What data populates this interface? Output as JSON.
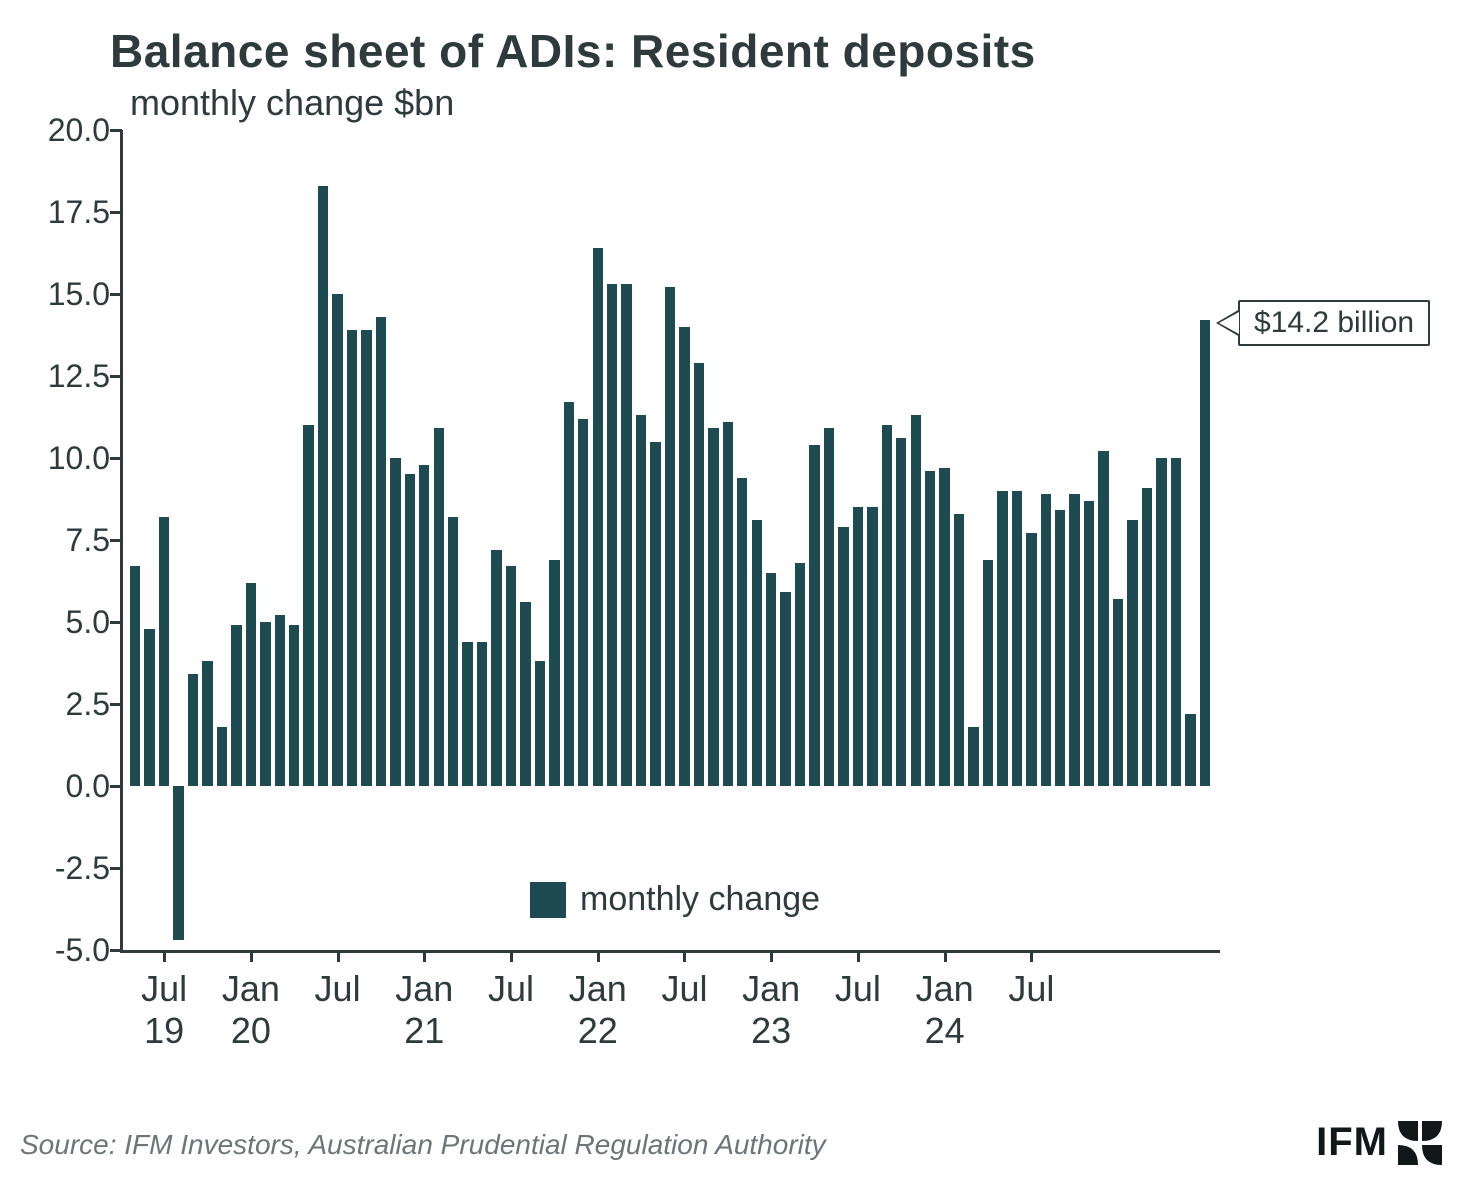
{
  "chart": {
    "type": "bar",
    "title": "Balance sheet of ADIs: Resident deposits",
    "subtitle": "monthly change $bn",
    "title_color": "#2f3a3c",
    "title_fontsize": 46,
    "subtitle_fontsize": 36,
    "background_color": "#ffffff",
    "axis_color": "#2f3a3c",
    "axis_linewidth": 3,
    "bar_color": "#1e4a52",
    "bar_gap_ratio": 0.28,
    "ylim": [
      -5.0,
      20.0
    ],
    "ytick_step": 2.5,
    "yticks": [
      -5.0,
      -2.5,
      0.0,
      2.5,
      5.0,
      7.5,
      10.0,
      12.5,
      15.0,
      17.5,
      20.0
    ],
    "ytick_labels": [
      "-5.0",
      "-2.5",
      "0.0",
      "2.5",
      "5.0",
      "7.5",
      "10.0",
      "12.5",
      "15.0",
      "17.5",
      "20.0"
    ],
    "ytick_fontsize": 32,
    "xtick_fontsize": 36,
    "xticks": [
      {
        "index": 2,
        "line1": "Jul",
        "line2": "19"
      },
      {
        "index": 8,
        "line1": "Jan",
        "line2": "20"
      },
      {
        "index": 14,
        "line1": "Jul",
        "line2": ""
      },
      {
        "index": 20,
        "line1": "Jan",
        "line2": "21"
      },
      {
        "index": 26,
        "line1": "Jul",
        "line2": ""
      },
      {
        "index": 32,
        "line1": "Jan",
        "line2": "22"
      },
      {
        "index": 38,
        "line1": "Jul",
        "line2": ""
      },
      {
        "index": 44,
        "line1": "Jan",
        "line2": "23"
      },
      {
        "index": 50,
        "line1": "Jul",
        "line2": ""
      },
      {
        "index": 56,
        "line1": "Jan",
        "line2": "24"
      },
      {
        "index": 62,
        "line1": "Jul",
        "line2": ""
      }
    ],
    "values": [
      6.7,
      4.8,
      8.2,
      -4.7,
      3.4,
      3.8,
      1.8,
      4.9,
      6.2,
      5.0,
      5.2,
      4.9,
      11.0,
      18.3,
      15.0,
      13.9,
      13.9,
      14.3,
      10.0,
      9.5,
      9.8,
      10.9,
      8.2,
      4.4,
      4.4,
      7.2,
      6.7,
      5.6,
      3.8,
      6.9,
      11.7,
      11.2,
      16.4,
      15.3,
      15.3,
      11.3,
      10.5,
      15.2,
      14.0,
      12.9,
      10.9,
      11.1,
      9.4,
      8.1,
      6.5,
      5.9,
      6.8,
      10.4,
      10.9,
      7.9,
      8.5,
      8.5,
      11.0,
      10.6,
      11.3,
      9.6,
      9.7,
      8.3,
      1.8,
      6.9,
      9.0,
      9.0,
      7.7,
      8.9,
      8.4,
      8.9,
      8.7,
      10.2,
      5.7,
      8.1,
      9.1,
      10.0,
      10.0,
      2.2,
      14.2
    ],
    "legend_label": "monthly change",
    "legend_fontsize": 34,
    "callout": {
      "text": "$14.2 billion",
      "points_to_index": 74,
      "fontsize": 30,
      "border_color": "#2f3a3c",
      "bg_color": "#ffffff"
    }
  },
  "source_text": "Source: IFM Investors, Australian Prudential Regulation Authority",
  "source_color": "#6e7578",
  "source_fontsize": 28,
  "logo": {
    "text": "IFM",
    "text_color": "#12171a",
    "mark_color": "#12171a"
  }
}
